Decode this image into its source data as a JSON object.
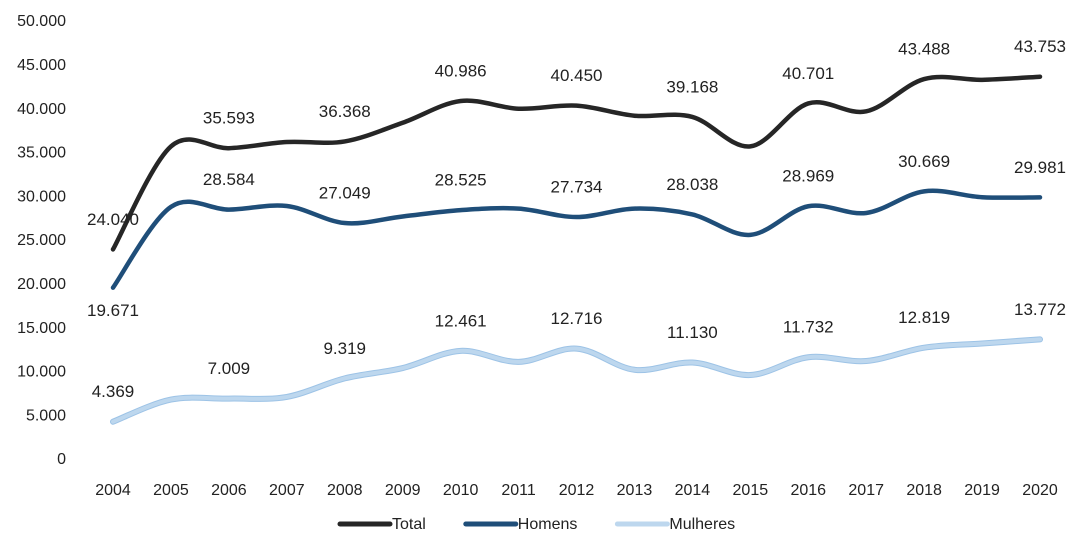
{
  "chart_data": {
    "type": "line",
    "x": [
      "2004",
      "2005",
      "2006",
      "2007",
      "2008",
      "2009",
      "2010",
      "2011",
      "2012",
      "2013",
      "2014",
      "2015",
      "2016",
      "2017",
      "2018",
      "2019",
      "2020"
    ],
    "ylim": [
      0,
      50000
    ],
    "yticks": [
      0,
      {
        "value": 5000,
        "label": "5.000"
      },
      {
        "value": 10000,
        "label": "10.000"
      },
      {
        "value": 15000,
        "label": "15.000"
      },
      {
        "value": 20000,
        "label": "20.000"
      },
      {
        "value": 25000,
        "label": "25.000"
      },
      {
        "value": 30000,
        "label": "30.000"
      },
      {
        "value": 35000,
        "label": "35.000"
      },
      {
        "value": 40000,
        "label": "40.000"
      },
      {
        "value": 45000,
        "label": "45.000"
      },
      {
        "value": 50000,
        "label": "50.000"
      }
    ],
    "grid": false,
    "legend": "bottom",
    "series": [
      {
        "name": "Total",
        "color": "#262626",
        "values": [
          24040,
          35800,
          35593,
          36300,
          36368,
          38500,
          40986,
          40100,
          40450,
          39300,
          39168,
          35800,
          40701,
          39800,
          43488,
          43400,
          43753
        ],
        "value_labels": [
          "24.040",
          null,
          "35.593",
          null,
          "36.368",
          null,
          "40.986",
          null,
          "40.450",
          null,
          "39.168",
          null,
          "40.701",
          null,
          "43.488",
          null,
          "43.753"
        ]
      },
      {
        "name": "Homens",
        "color": "#1f4e79",
        "values": [
          19671,
          28900,
          28584,
          29000,
          27049,
          27800,
          28525,
          28700,
          27734,
          28700,
          28038,
          25700,
          28969,
          28200,
          30669,
          30000,
          29981
        ],
        "value_labels": [
          "19.671",
          null,
          "28.584",
          null,
          "27.049",
          null,
          "28.525",
          null,
          "27.734",
          null,
          "28.038",
          null,
          "28.969",
          null,
          "30.669",
          null,
          "29.981"
        ]
      },
      {
        "name": "Mulheres",
        "color": "#bdd7ee",
        "values": [
          4369,
          6900,
          7009,
          7200,
          9319,
          10500,
          12461,
          11200,
          12716,
          10300,
          11130,
          9700,
          11732,
          11300,
          12819,
          13300,
          13772
        ],
        "value_labels": [
          "4.369",
          null,
          "7.009",
          null,
          "9.319",
          null,
          "12.461",
          null,
          "12.716",
          null,
          "11.130",
          null,
          "11.732",
          null,
          "12.819",
          null,
          "13.772"
        ]
      }
    ]
  }
}
